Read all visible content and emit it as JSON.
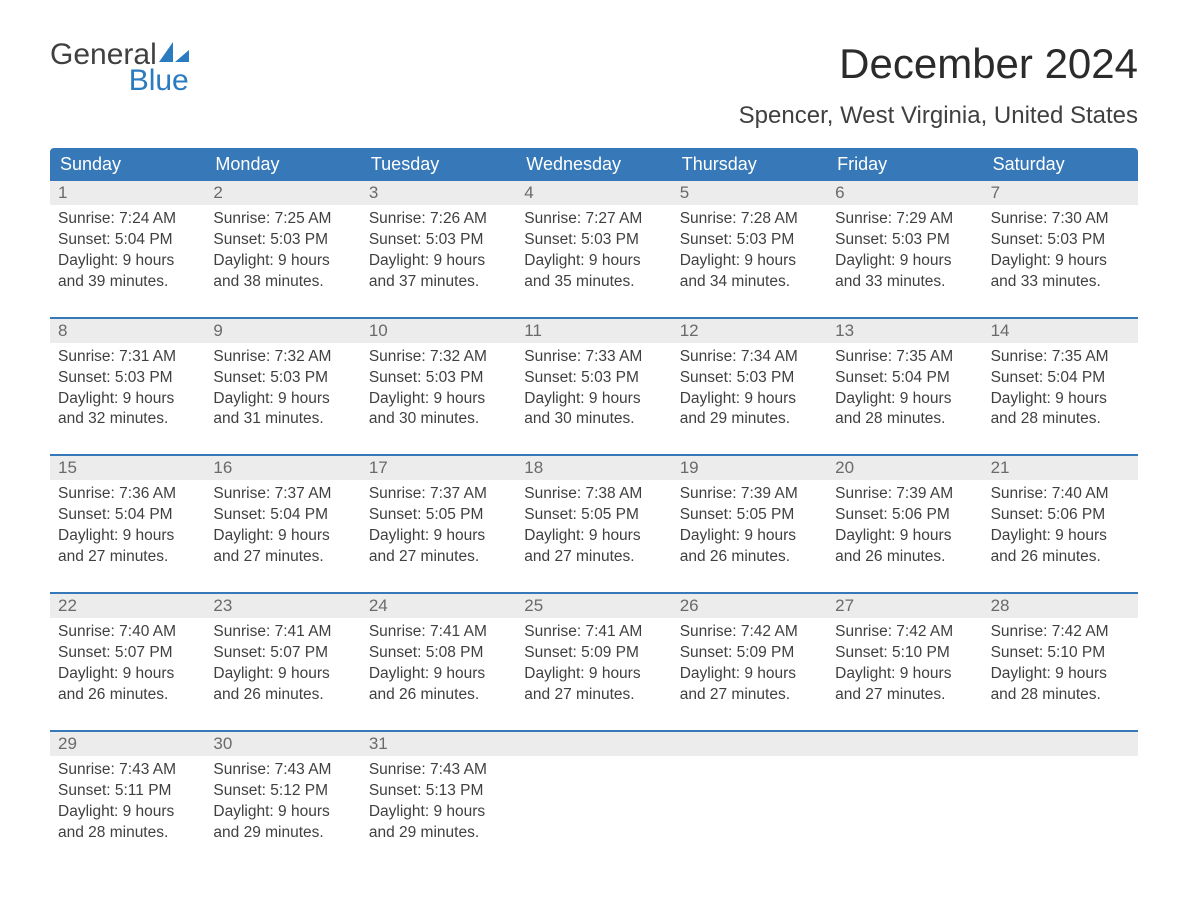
{
  "logo": {
    "word1": "General",
    "word2": "Blue"
  },
  "title": "December 2024",
  "subtitle": "Spencer, West Virginia, United States",
  "colors": {
    "header_bg": "#3678b8",
    "header_text": "#ffffff",
    "daynum_bg": "#ececec",
    "daynum_text": "#6a6a6a",
    "body_text": "#404040",
    "accent": "#2a7bbf",
    "page_bg": "#ffffff"
  },
  "days_of_week": [
    "Sunday",
    "Monday",
    "Tuesday",
    "Wednesday",
    "Thursday",
    "Friday",
    "Saturday"
  ],
  "weeks": [
    [
      {
        "num": "1",
        "sunrise": "Sunrise: 7:24 AM",
        "sunset": "Sunset: 5:04 PM",
        "d1": "Daylight: 9 hours",
        "d2": "and 39 minutes."
      },
      {
        "num": "2",
        "sunrise": "Sunrise: 7:25 AM",
        "sunset": "Sunset: 5:03 PM",
        "d1": "Daylight: 9 hours",
        "d2": "and 38 minutes."
      },
      {
        "num": "3",
        "sunrise": "Sunrise: 7:26 AM",
        "sunset": "Sunset: 5:03 PM",
        "d1": "Daylight: 9 hours",
        "d2": "and 37 minutes."
      },
      {
        "num": "4",
        "sunrise": "Sunrise: 7:27 AM",
        "sunset": "Sunset: 5:03 PM",
        "d1": "Daylight: 9 hours",
        "d2": "and 35 minutes."
      },
      {
        "num": "5",
        "sunrise": "Sunrise: 7:28 AM",
        "sunset": "Sunset: 5:03 PM",
        "d1": "Daylight: 9 hours",
        "d2": "and 34 minutes."
      },
      {
        "num": "6",
        "sunrise": "Sunrise: 7:29 AM",
        "sunset": "Sunset: 5:03 PM",
        "d1": "Daylight: 9 hours",
        "d2": "and 33 minutes."
      },
      {
        "num": "7",
        "sunrise": "Sunrise: 7:30 AM",
        "sunset": "Sunset: 5:03 PM",
        "d1": "Daylight: 9 hours",
        "d2": "and 33 minutes."
      }
    ],
    [
      {
        "num": "8",
        "sunrise": "Sunrise: 7:31 AM",
        "sunset": "Sunset: 5:03 PM",
        "d1": "Daylight: 9 hours",
        "d2": "and 32 minutes."
      },
      {
        "num": "9",
        "sunrise": "Sunrise: 7:32 AM",
        "sunset": "Sunset: 5:03 PM",
        "d1": "Daylight: 9 hours",
        "d2": "and 31 minutes."
      },
      {
        "num": "10",
        "sunrise": "Sunrise: 7:32 AM",
        "sunset": "Sunset: 5:03 PM",
        "d1": "Daylight: 9 hours",
        "d2": "and 30 minutes."
      },
      {
        "num": "11",
        "sunrise": "Sunrise: 7:33 AM",
        "sunset": "Sunset: 5:03 PM",
        "d1": "Daylight: 9 hours",
        "d2": "and 30 minutes."
      },
      {
        "num": "12",
        "sunrise": "Sunrise: 7:34 AM",
        "sunset": "Sunset: 5:03 PM",
        "d1": "Daylight: 9 hours",
        "d2": "and 29 minutes."
      },
      {
        "num": "13",
        "sunrise": "Sunrise: 7:35 AM",
        "sunset": "Sunset: 5:04 PM",
        "d1": "Daylight: 9 hours",
        "d2": "and 28 minutes."
      },
      {
        "num": "14",
        "sunrise": "Sunrise: 7:35 AM",
        "sunset": "Sunset: 5:04 PM",
        "d1": "Daylight: 9 hours",
        "d2": "and 28 minutes."
      }
    ],
    [
      {
        "num": "15",
        "sunrise": "Sunrise: 7:36 AM",
        "sunset": "Sunset: 5:04 PM",
        "d1": "Daylight: 9 hours",
        "d2": "and 27 minutes."
      },
      {
        "num": "16",
        "sunrise": "Sunrise: 7:37 AM",
        "sunset": "Sunset: 5:04 PM",
        "d1": "Daylight: 9 hours",
        "d2": "and 27 minutes."
      },
      {
        "num": "17",
        "sunrise": "Sunrise: 7:37 AM",
        "sunset": "Sunset: 5:05 PM",
        "d1": "Daylight: 9 hours",
        "d2": "and 27 minutes."
      },
      {
        "num": "18",
        "sunrise": "Sunrise: 7:38 AM",
        "sunset": "Sunset: 5:05 PM",
        "d1": "Daylight: 9 hours",
        "d2": "and 27 minutes."
      },
      {
        "num": "19",
        "sunrise": "Sunrise: 7:39 AM",
        "sunset": "Sunset: 5:05 PM",
        "d1": "Daylight: 9 hours",
        "d2": "and 26 minutes."
      },
      {
        "num": "20",
        "sunrise": "Sunrise: 7:39 AM",
        "sunset": "Sunset: 5:06 PM",
        "d1": "Daylight: 9 hours",
        "d2": "and 26 minutes."
      },
      {
        "num": "21",
        "sunrise": "Sunrise: 7:40 AM",
        "sunset": "Sunset: 5:06 PM",
        "d1": "Daylight: 9 hours",
        "d2": "and 26 minutes."
      }
    ],
    [
      {
        "num": "22",
        "sunrise": "Sunrise: 7:40 AM",
        "sunset": "Sunset: 5:07 PM",
        "d1": "Daylight: 9 hours",
        "d2": "and 26 minutes."
      },
      {
        "num": "23",
        "sunrise": "Sunrise: 7:41 AM",
        "sunset": "Sunset: 5:07 PM",
        "d1": "Daylight: 9 hours",
        "d2": "and 26 minutes."
      },
      {
        "num": "24",
        "sunrise": "Sunrise: 7:41 AM",
        "sunset": "Sunset: 5:08 PM",
        "d1": "Daylight: 9 hours",
        "d2": "and 26 minutes."
      },
      {
        "num": "25",
        "sunrise": "Sunrise: 7:41 AM",
        "sunset": "Sunset: 5:09 PM",
        "d1": "Daylight: 9 hours",
        "d2": "and 27 minutes."
      },
      {
        "num": "26",
        "sunrise": "Sunrise: 7:42 AM",
        "sunset": "Sunset: 5:09 PM",
        "d1": "Daylight: 9 hours",
        "d2": "and 27 minutes."
      },
      {
        "num": "27",
        "sunrise": "Sunrise: 7:42 AM",
        "sunset": "Sunset: 5:10 PM",
        "d1": "Daylight: 9 hours",
        "d2": "and 27 minutes."
      },
      {
        "num": "28",
        "sunrise": "Sunrise: 7:42 AM",
        "sunset": "Sunset: 5:10 PM",
        "d1": "Daylight: 9 hours",
        "d2": "and 28 minutes."
      }
    ],
    [
      {
        "num": "29",
        "sunrise": "Sunrise: 7:43 AM",
        "sunset": "Sunset: 5:11 PM",
        "d1": "Daylight: 9 hours",
        "d2": "and 28 minutes."
      },
      {
        "num": "30",
        "sunrise": "Sunrise: 7:43 AM",
        "sunset": "Sunset: 5:12 PM",
        "d1": "Daylight: 9 hours",
        "d2": "and 29 minutes."
      },
      {
        "num": "31",
        "sunrise": "Sunrise: 7:43 AM",
        "sunset": "Sunset: 5:13 PM",
        "d1": "Daylight: 9 hours",
        "d2": "and 29 minutes."
      },
      null,
      null,
      null,
      null
    ]
  ]
}
